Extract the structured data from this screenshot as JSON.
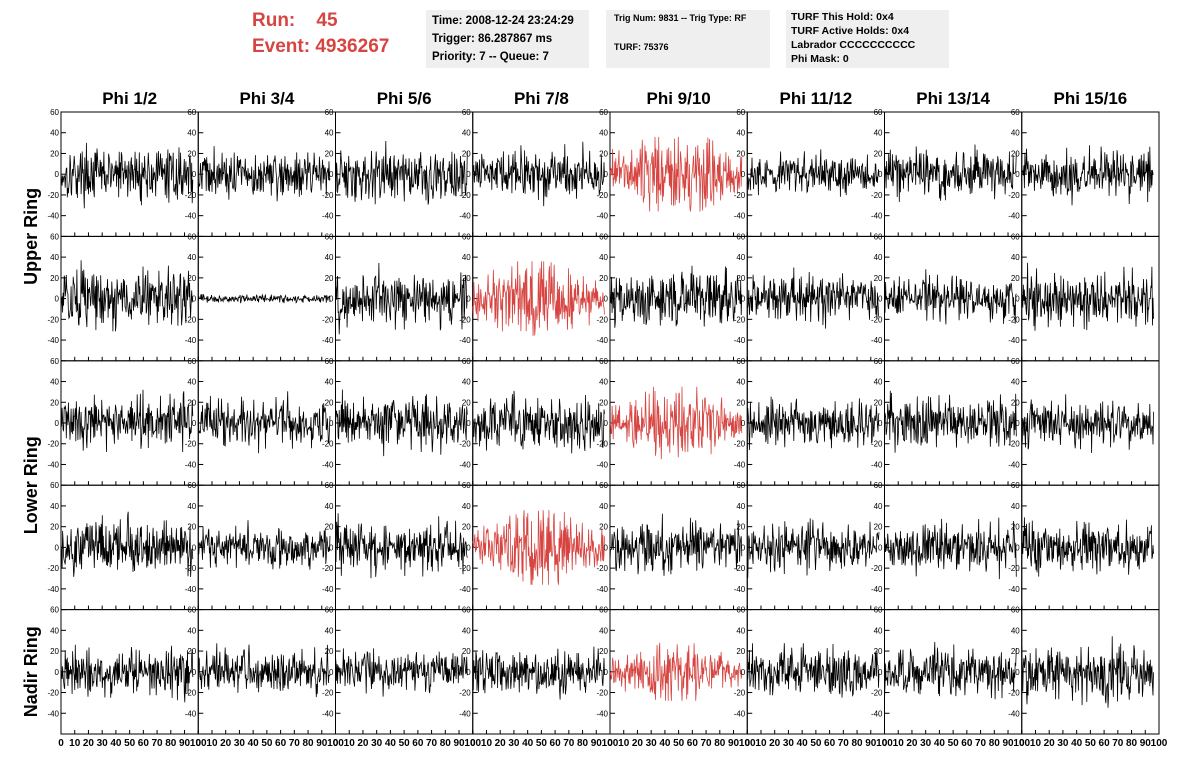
{
  "header": {
    "run_label": "Run:",
    "run_value": "45",
    "event_label": "Event:",
    "event_value": "4936267",
    "info1": [
      "Time: 2008-12-24 23:24:29",
      "Trigger: 86.287867 ms",
      "Priority: 7 -- Queue: 7"
    ],
    "info2": [
      "Trig Num: 9831 -- Trig Type: RF",
      "TURF: 75376"
    ],
    "info3": [
      "TURF This Hold: 0x4",
      "TURF Active Holds: 0x4",
      "Labrador CCCCCCCCCC",
      "Phi Mask: 0"
    ]
  },
  "colors": {
    "highlight": "#d64541",
    "normal": "#000000",
    "info_bg": "#efefef"
  },
  "chart_data": {
    "type": "line",
    "columns": [
      "Phi 1/2",
      "Phi 3/4",
      "Phi 5/6",
      "Phi 7/8",
      "Phi 9/10",
      "Phi 11/12",
      "Phi 13/14",
      "Phi 15/16"
    ],
    "ring_labels": [
      {
        "label": "Upper Ring",
        "rows": [
          0,
          1
        ]
      },
      {
        "label": "Lower Ring",
        "rows": [
          2,
          3
        ]
      },
      {
        "label": "Nadir Ring",
        "rows": [
          4
        ]
      }
    ],
    "rows": 5,
    "xlim": [
      0,
      100
    ],
    "ylim": [
      -60,
      60
    ],
    "y_ticks": [
      -40,
      -20,
      0,
      20,
      40,
      60
    ],
    "x_ticks": [
      0,
      10,
      20,
      30,
      40,
      50,
      60,
      70,
      80,
      90,
      100
    ],
    "waveform_x_range": [
      0,
      96
    ],
    "samples_per_trace": 250,
    "panels": [
      {
        "row": 0,
        "col": 0,
        "highlight": false,
        "rms": 12,
        "peak": 42
      },
      {
        "row": 0,
        "col": 1,
        "highlight": false,
        "rms": 11,
        "peak": 35
      },
      {
        "row": 0,
        "col": 2,
        "highlight": false,
        "rms": 13,
        "peak": 52
      },
      {
        "row": 0,
        "col": 3,
        "highlight": false,
        "rms": 12,
        "peak": 40
      },
      {
        "row": 0,
        "col": 4,
        "highlight": true,
        "rms": 16,
        "peak": 36,
        "burst": true
      },
      {
        "row": 0,
        "col": 5,
        "highlight": false,
        "rms": 10,
        "peak": 30
      },
      {
        "row": 0,
        "col": 6,
        "highlight": false,
        "rms": 11,
        "peak": 42
      },
      {
        "row": 0,
        "col": 7,
        "highlight": false,
        "rms": 11,
        "peak": 30
      },
      {
        "row": 1,
        "col": 0,
        "highlight": false,
        "rms": 14,
        "peak": 45
      },
      {
        "row": 1,
        "col": 1,
        "highlight": false,
        "rms": 1.8,
        "peak": 5
      },
      {
        "row": 1,
        "col": 2,
        "highlight": false,
        "rms": 13,
        "peak": 50
      },
      {
        "row": 1,
        "col": 3,
        "highlight": true,
        "rms": 15,
        "peak": 36,
        "burst": true
      },
      {
        "row": 1,
        "col": 4,
        "highlight": false,
        "rms": 13,
        "peak": 38
      },
      {
        "row": 1,
        "col": 5,
        "highlight": false,
        "rms": 11,
        "peak": 30
      },
      {
        "row": 1,
        "col": 6,
        "highlight": false,
        "rms": 11,
        "peak": 35
      },
      {
        "row": 1,
        "col": 7,
        "highlight": false,
        "rms": 13,
        "peak": 40
      },
      {
        "row": 2,
        "col": 0,
        "highlight": false,
        "rms": 12,
        "peak": 42
      },
      {
        "row": 2,
        "col": 1,
        "highlight": false,
        "rms": 11,
        "peak": 32
      },
      {
        "row": 2,
        "col": 2,
        "highlight": false,
        "rms": 12,
        "peak": 40
      },
      {
        "row": 2,
        "col": 3,
        "highlight": false,
        "rms": 12,
        "peak": 36
      },
      {
        "row": 2,
        "col": 4,
        "highlight": true,
        "rms": 14,
        "peak": 35,
        "burst": true
      },
      {
        "row": 2,
        "col": 5,
        "highlight": false,
        "rms": 11,
        "peak": 34
      },
      {
        "row": 2,
        "col": 6,
        "highlight": false,
        "rms": 12,
        "peak": 36
      },
      {
        "row": 2,
        "col": 7,
        "highlight": false,
        "rms": 11,
        "peak": 32
      },
      {
        "row": 3,
        "col": 0,
        "highlight": false,
        "rms": 12,
        "peak": 40
      },
      {
        "row": 3,
        "col": 1,
        "highlight": false,
        "rms": 10,
        "peak": 30
      },
      {
        "row": 3,
        "col": 2,
        "highlight": false,
        "rms": 12,
        "peak": 36
      },
      {
        "row": 3,
        "col": 3,
        "highlight": true,
        "rms": 15,
        "peak": 36,
        "burst": true
      },
      {
        "row": 3,
        "col": 4,
        "highlight": false,
        "rms": 12,
        "peak": 36
      },
      {
        "row": 3,
        "col": 5,
        "highlight": false,
        "rms": 11,
        "peak": 30
      },
      {
        "row": 3,
        "col": 6,
        "highlight": false,
        "rms": 11,
        "peak": 32
      },
      {
        "row": 3,
        "col": 7,
        "highlight": false,
        "rms": 12,
        "peak": 36
      },
      {
        "row": 4,
        "col": 0,
        "highlight": false,
        "rms": 11,
        "peak": 30
      },
      {
        "row": 4,
        "col": 1,
        "highlight": false,
        "rms": 10,
        "peak": 28
      },
      {
        "row": 4,
        "col": 2,
        "highlight": false,
        "rms": 10,
        "peak": 28
      },
      {
        "row": 4,
        "col": 3,
        "highlight": false,
        "rms": 11,
        "peak": 32
      },
      {
        "row": 4,
        "col": 4,
        "highlight": true,
        "rms": 11,
        "peak": 28,
        "burst": true
      },
      {
        "row": 4,
        "col": 5,
        "highlight": false,
        "rms": 12,
        "peak": 40
      },
      {
        "row": 4,
        "col": 6,
        "highlight": false,
        "rms": 12,
        "peak": 36
      },
      {
        "row": 4,
        "col": 7,
        "highlight": false,
        "rms": 13,
        "peak": 40
      }
    ]
  }
}
